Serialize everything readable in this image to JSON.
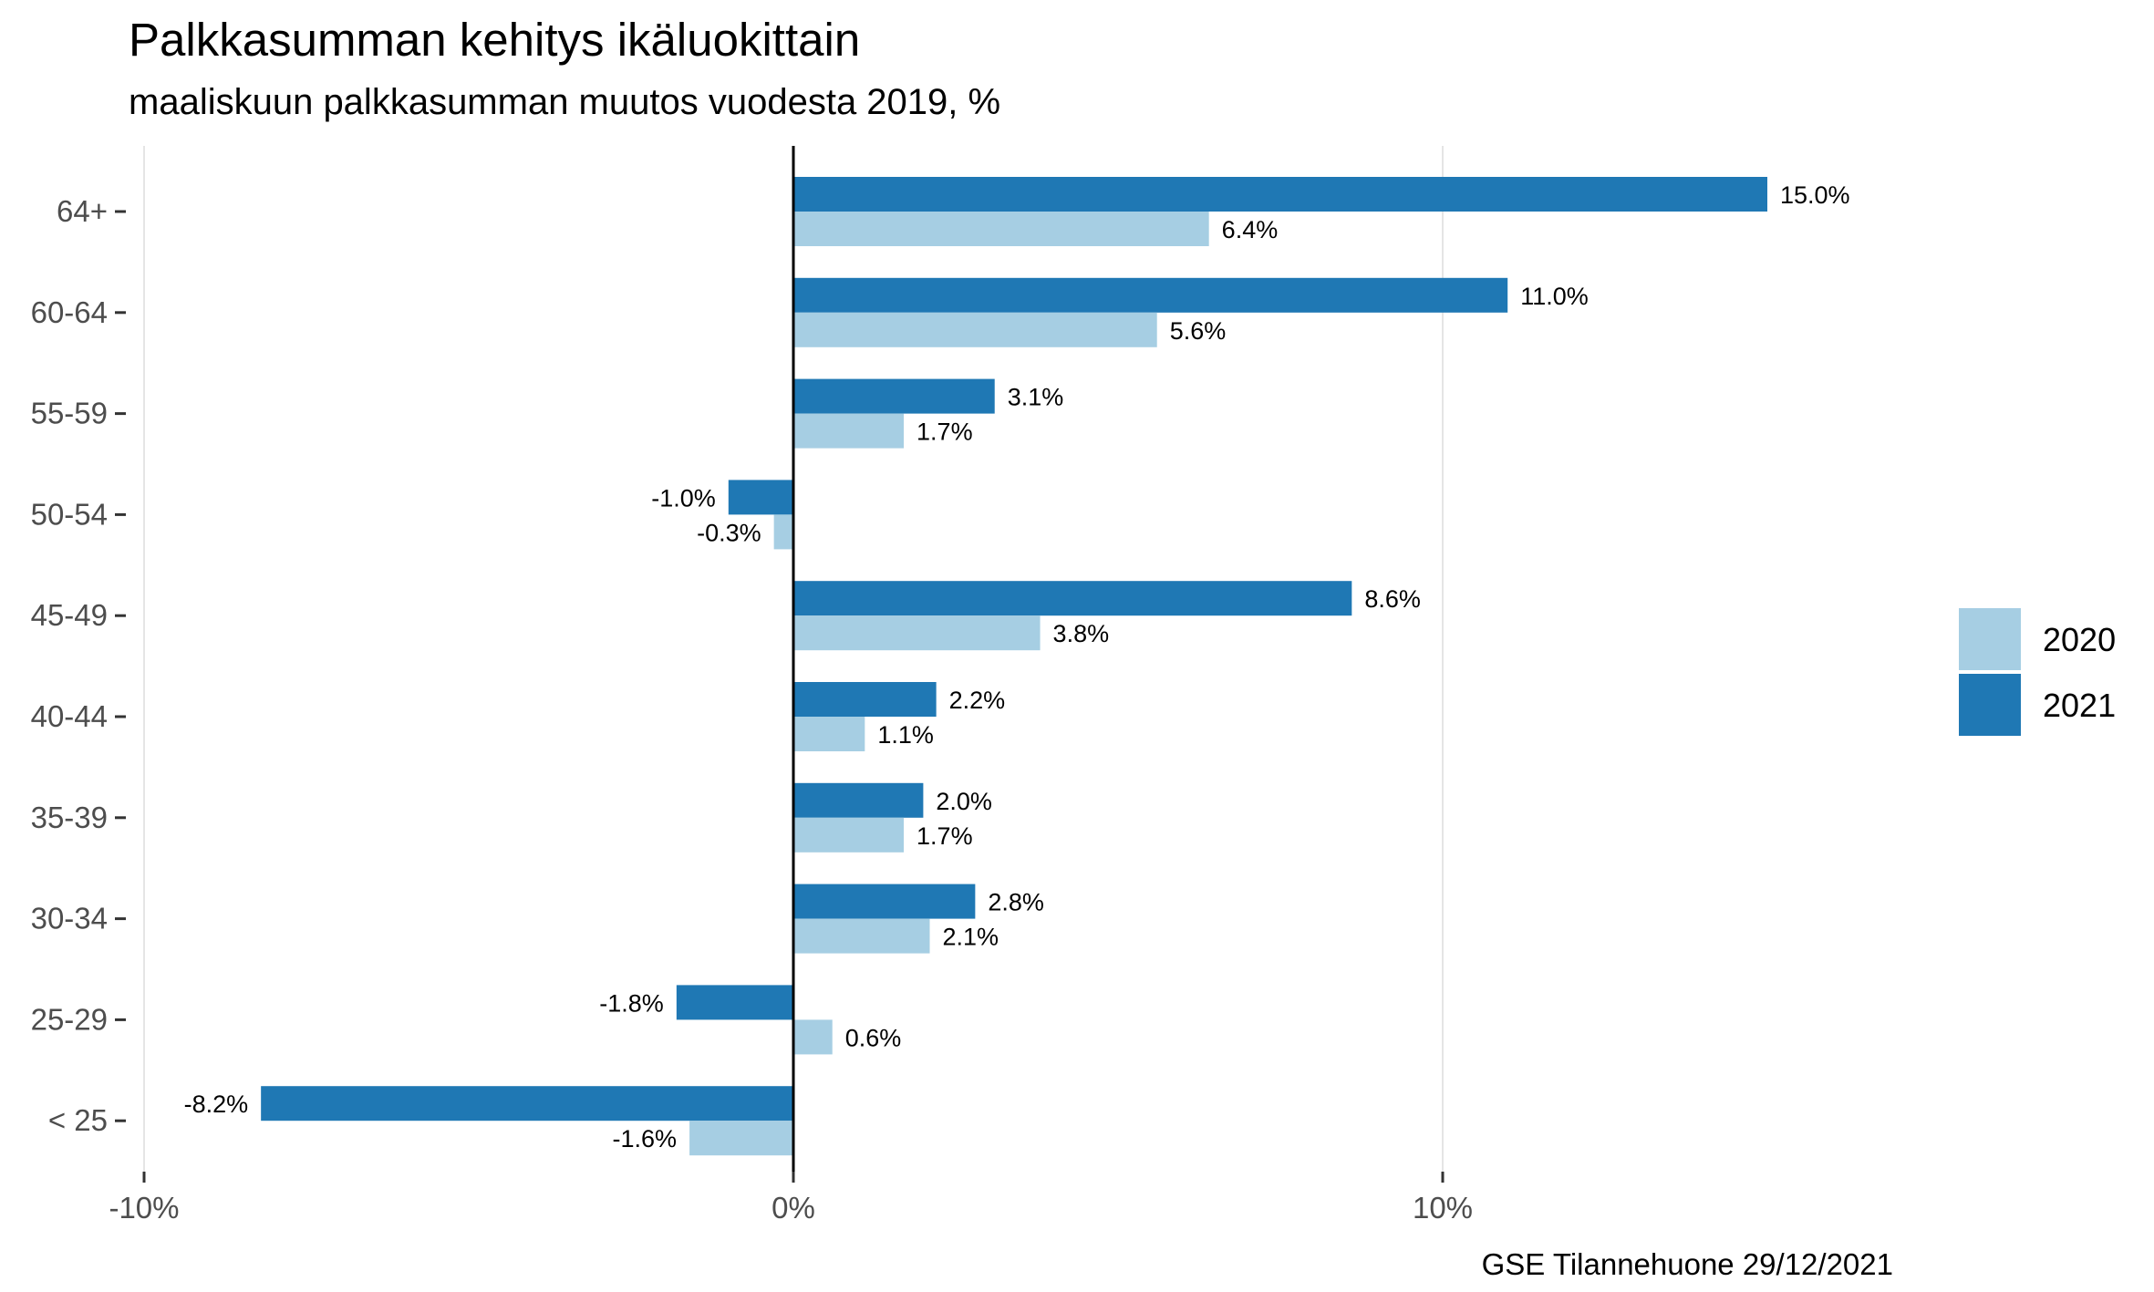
{
  "chart_data": {
    "type": "bar",
    "orientation": "horizontal",
    "title": "Palkkasumman kehitys ikäluokittain",
    "subtitle": "maaliskuun palkkasumman muutos vuodesta 2019, %",
    "caption": "GSE Tilannehuone 29/12/2021",
    "categories": [
      "64+",
      "60-64",
      "55-59",
      "50-54",
      "45-49",
      "40-44",
      "35-39",
      "30-34",
      "25-29",
      "< 25"
    ],
    "series": [
      {
        "name": "2020",
        "color": "#a6cee3",
        "values": [
          6.4,
          5.6,
          1.7,
          -0.3,
          3.8,
          1.1,
          1.7,
          2.1,
          0.6,
          -1.6
        ],
        "labels": [
          "6.4%",
          "5.6%",
          "1.7%",
          "-0.3%",
          "3.8%",
          "1.1%",
          "1.7%",
          "2.1%",
          "0.6%",
          "-1.6%"
        ]
      },
      {
        "name": "2021",
        "color": "#1f78b4",
        "values": [
          15.0,
          11.0,
          3.1,
          -1.0,
          8.6,
          2.2,
          2.0,
          2.8,
          -1.8,
          -8.2
        ],
        "labels": [
          "15.0%",
          "11.0%",
          "3.1%",
          "-1.0%",
          "8.6%",
          "2.2%",
          "2.0%",
          "2.8%",
          "-1.8%",
          "-8.2%"
        ]
      }
    ],
    "x_ticks": [
      -10,
      0,
      10
    ],
    "x_tick_labels": [
      "-10%",
      "0%",
      "10%"
    ],
    "xlim": [
      -10,
      17.5
    ],
    "grid": "vertical major",
    "legend_position": "right"
  }
}
